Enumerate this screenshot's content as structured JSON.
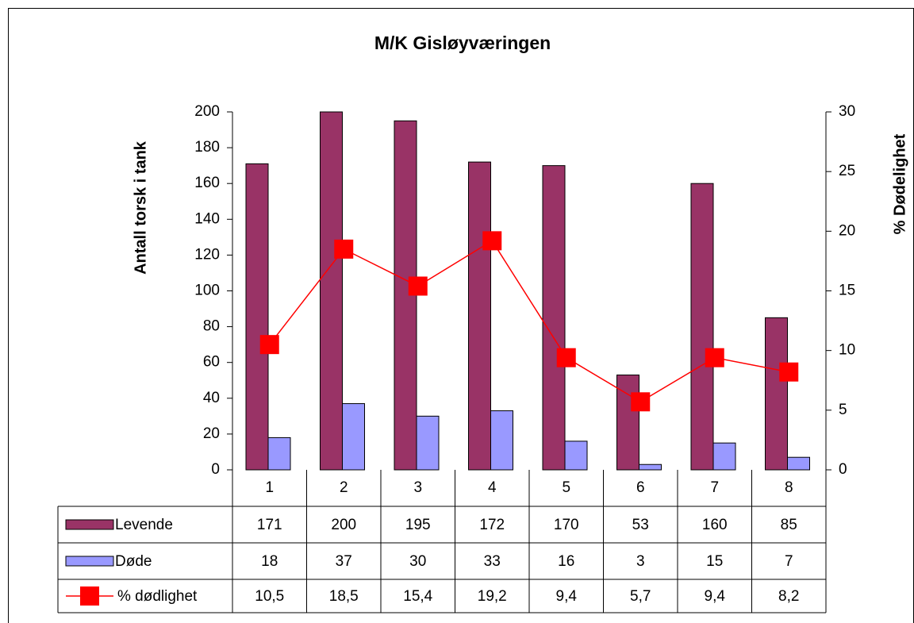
{
  "chart_data": {
    "type": "bar",
    "title": "M/K Gisløyværingen",
    "ylabel": "Antall torsk i tank",
    "y2label": "% Dødelighet",
    "categories": [
      "1",
      "2",
      "3",
      "4",
      "5",
      "6",
      "7",
      "8"
    ],
    "series": [
      {
        "name": "Levende",
        "type": "bar",
        "color": "#993366",
        "values": [
          171,
          200,
          195,
          172,
          170,
          53,
          160,
          85
        ]
      },
      {
        "name": "Døde",
        "type": "bar",
        "color": "#9999ff",
        "values": [
          18,
          37,
          30,
          33,
          16,
          3,
          15,
          7
        ]
      },
      {
        "name": "% dødlighet",
        "type": "line",
        "axis": "y2",
        "color": "#ff0000",
        "values": [
          10.5,
          18.5,
          15.4,
          19.2,
          9.4,
          5.7,
          9.4,
          8.2
        ],
        "value_labels": [
          "10,5",
          "18,5",
          "15,4",
          "19,2",
          "9,4",
          "5,7",
          "9,4",
          "8,2"
        ]
      }
    ],
    "ylim": [
      0,
      200
    ],
    "yticks": [
      0,
      20,
      40,
      60,
      80,
      100,
      120,
      140,
      160,
      180,
      200
    ],
    "y2lim": [
      0,
      30
    ],
    "y2ticks": [
      0,
      5,
      10,
      15,
      20,
      25,
      30
    ],
    "data_table": true
  }
}
